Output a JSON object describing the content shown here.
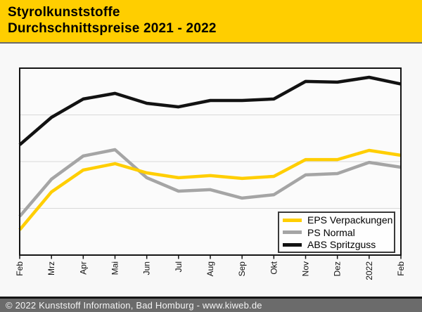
{
  "header": {
    "title_line1": "Styrolkunststoffe",
    "title_line2": "Durchschnittspreise 2021 - 2022",
    "background": "#FFCE00"
  },
  "chart_data": {
    "type": "line",
    "title": "Styrolkunststoffe Durchschnittspreise 2021 - 2022",
    "categories": [
      "Feb",
      "Mrz",
      "Apr",
      "Mai",
      "Jun",
      "Jul",
      "Aug",
      "Sep",
      "Okt",
      "Nov",
      "Dez",
      "2022",
      "Feb"
    ],
    "series": [
      {
        "name": "EPS Verpackungen",
        "color": "#FFCE00",
        "z": 2,
        "values": [
          13.5,
          33.8,
          45.5,
          48.9,
          44.0,
          41.4,
          42.5,
          41.0,
          42.1,
          51.1,
          51.1,
          56.0,
          53.4
        ]
      },
      {
        "name": "PS Normal",
        "color": "#A5A5A5",
        "z": 1,
        "values": [
          20.7,
          40.6,
          53.0,
          56.4,
          41.4,
          34.2,
          35.0,
          30.5,
          32.3,
          42.9,
          43.6,
          49.6,
          47.0
        ]
      },
      {
        "name": "ABS Spritzguss",
        "color": "#121212",
        "z": 3,
        "values": [
          59.0,
          73.7,
          83.5,
          86.5,
          81.2,
          79.3,
          82.7,
          82.7,
          83.5,
          92.9,
          92.5,
          95.1,
          91.5
        ]
      }
    ],
    "xlabel": "",
    "ylabel": "",
    "ylim": [
      0,
      100
    ],
    "y_axis_labels_visible": false,
    "gridline_values": [
      25,
      50,
      75
    ],
    "grid_color": "#D9D9D9",
    "frame_color": "#141414",
    "plot_bg": "#FBFBFB",
    "x_tick_label_rotation_deg": -90,
    "legend_position": "inside bottom-right"
  },
  "legend": {
    "items": [
      {
        "label": "EPS Verpackungen",
        "color": "#FFCE00"
      },
      {
        "label": "PS Normal",
        "color": "#A5A5A5"
      },
      {
        "label": "ABS Spritzguss",
        "color": "#121212"
      }
    ]
  },
  "footer": {
    "text": "© 2022 Kunststoff Information, Bad Homburg - www.kiweb.de",
    "background": "#6B6B6B"
  }
}
